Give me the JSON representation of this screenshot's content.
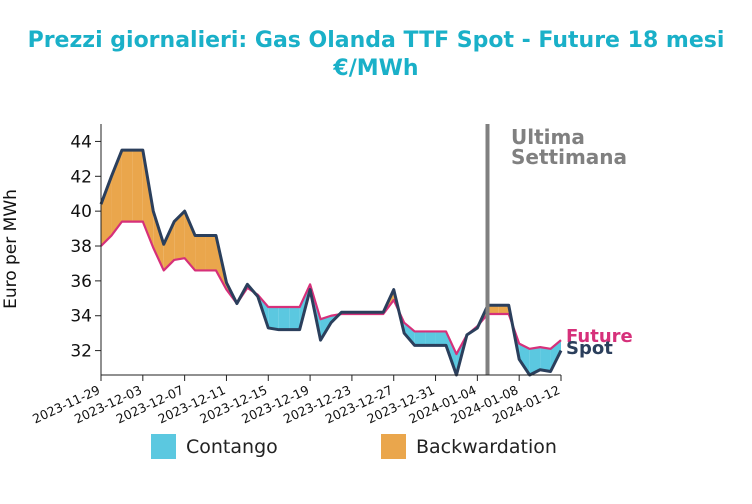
{
  "chart_data": {
    "type": "area",
    "title": "Prezzi giornalieri: Gas Olanda TTF Spot - Future 18 mesi",
    "subtitle": "€/MWh",
    "xlabel": "",
    "ylabel": "Euro per MWh",
    "ylim": [
      30.6,
      45.0
    ],
    "yticks": [
      32,
      34,
      36,
      38,
      40,
      42,
      44
    ],
    "xticks": [
      "2023-11-29",
      "2023-12-03",
      "2023-12-07",
      "2023-12-11",
      "2023-12-15",
      "2023-12-19",
      "2023-12-23",
      "2023-12-27",
      "2023-12-31",
      "2024-01-04",
      "2024-01-08",
      "2024-01-12"
    ],
    "x": [
      "2023-11-29",
      "2023-11-30",
      "2023-12-01",
      "2023-12-02",
      "2023-12-03",
      "2023-12-04",
      "2023-12-05",
      "2023-12-06",
      "2023-12-07",
      "2023-12-08",
      "2023-12-09",
      "2023-12-10",
      "2023-12-11",
      "2023-12-12",
      "2023-12-13",
      "2023-12-14",
      "2023-12-15",
      "2023-12-16",
      "2023-12-17",
      "2023-12-18",
      "2023-12-19",
      "2023-12-20",
      "2023-12-21",
      "2023-12-22",
      "2023-12-23",
      "2023-12-24",
      "2023-12-25",
      "2023-12-26",
      "2023-12-27",
      "2023-12-28",
      "2023-12-29",
      "2023-12-30",
      "2023-12-31",
      "2024-01-01",
      "2024-01-02",
      "2024-01-03",
      "2024-01-04",
      "2024-01-05",
      "2024-01-06",
      "2024-01-07",
      "2024-01-08",
      "2024-01-09",
      "2024-01-10",
      "2024-01-11",
      "2024-01-12"
    ],
    "series": [
      {
        "name": "Spot",
        "color": "#2b3f5c",
        "values": [
          40.4,
          42.0,
          43.5,
          43.5,
          43.5,
          40.0,
          38.1,
          39.4,
          40.0,
          38.6,
          38.6,
          38.6,
          35.9,
          34.7,
          35.8,
          35.1,
          33.3,
          33.2,
          33.2,
          33.2,
          35.5,
          32.6,
          33.6,
          34.2,
          34.2,
          34.2,
          34.2,
          34.2,
          35.5,
          33.0,
          32.3,
          32.3,
          32.3,
          32.3,
          30.6,
          32.9,
          33.3,
          34.6,
          34.6,
          34.6,
          31.5,
          30.6,
          30.9,
          30.8,
          32.0
        ]
      },
      {
        "name": "Future",
        "color": "#d6307a",
        "values": [
          38.0,
          38.6,
          39.4,
          39.4,
          39.4,
          37.9,
          36.6,
          37.2,
          37.3,
          36.6,
          36.6,
          36.6,
          35.5,
          34.7,
          35.6,
          35.2,
          34.5,
          34.5,
          34.5,
          34.5,
          35.8,
          33.8,
          34.0,
          34.1,
          34.1,
          34.1,
          34.1,
          34.1,
          34.9,
          33.6,
          33.1,
          33.1,
          33.1,
          33.1,
          31.8,
          32.9,
          33.4,
          34.1,
          34.1,
          34.1,
          32.4,
          32.1,
          32.2,
          32.1,
          32.6
        ]
      }
    ],
    "fills": [
      {
        "name": "Contango",
        "color": "#5bc8e0"
      },
      {
        "name": "Backwardation",
        "color": "#eaa64c"
      }
    ],
    "vline": {
      "x": "2024-01-04",
      "label_line1": "Ultima",
      "label_line2": "Settimana",
      "color": "#808080"
    },
    "legend_position": "bottom",
    "grid": false
  }
}
